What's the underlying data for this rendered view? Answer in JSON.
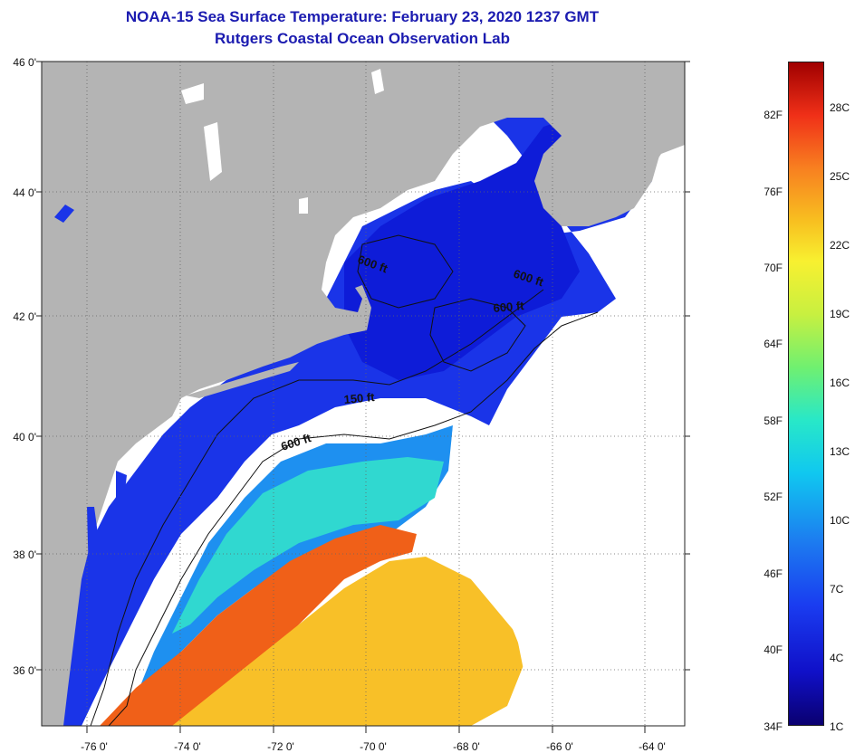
{
  "header": {
    "title": "NOAA-15 Sea Surface Temperature:  February 23, 2020 1237 GMT",
    "subtitle": "Rutgers Coastal Ocean Observation Lab"
  },
  "axes": {
    "lat_ticks": [
      "46 0'",
      "44 0'",
      "42 0'",
      "40 0'",
      "38 0'",
      "36 0'"
    ],
    "lon_ticks": [
      "-76 0'",
      "-74 0'",
      "-72 0'",
      "-70 0'",
      "-68 0'",
      "-66 0'",
      "-64 0'"
    ]
  },
  "contours": {
    "labels": [
      "600 ft",
      "600 ft",
      "600 ft",
      "150 ft",
      "600 ft"
    ]
  },
  "colorbar": {
    "fahrenheit": [
      "82F",
      "76F",
      "70F",
      "64F",
      "58F",
      "52F",
      "46F",
      "40F",
      "34F"
    ],
    "celsius": [
      "28C",
      "25C",
      "22C",
      "19C",
      "16C",
      "13C",
      "10C",
      "7C",
      "4C",
      "1C"
    ]
  },
  "colors": {
    "land": "#b4b4b4",
    "cloud": "#ffffff",
    "title": "#1b1bb0",
    "cold_water": "#1a2ee8",
    "mid_water": "#30d8d8",
    "warm_water": "#f06020"
  }
}
